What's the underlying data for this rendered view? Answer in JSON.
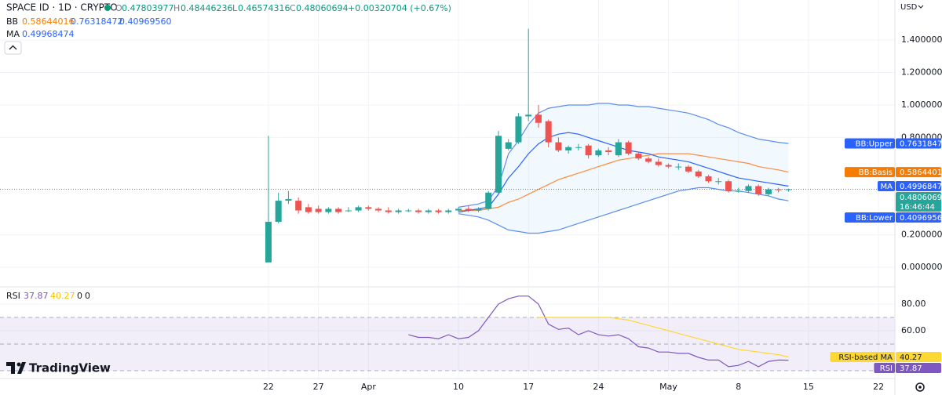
{
  "header": {
    "symbol": "SPACE ID · 1D · CRYPTO",
    "ohlc": [
      {
        "label": "O",
        "value": "0.47803977"
      },
      {
        "label": "H",
        "value": "0.48446236"
      },
      {
        "label": "L",
        "value": "0.46574316"
      },
      {
        "label": "C",
        "value": "0.48060694"
      }
    ],
    "change": "+0.00320704 (+0.67%)",
    "bb": {
      "label": "BB",
      "values": [
        "0.58644016",
        "0.76318472",
        "0.40969560"
      ]
    },
    "ma": {
      "label": "MA",
      "values": [
        "0.49968474"
      ]
    },
    "currency": "USD",
    "logo": "TradingView"
  },
  "chart_data": {
    "type": "candlestick",
    "up_color": "#26a69a",
    "down_color": "#ef5350",
    "xlim": [
      -26.84,
      62.64
    ],
    "xticks": [
      {
        "value": 0,
        "label": "22"
      },
      {
        "value": 5,
        "label": "27"
      },
      {
        "value": 10,
        "label": "Apr"
      },
      {
        "value": 19,
        "label": "10"
      },
      {
        "value": 26,
        "label": "17"
      },
      {
        "value": 33,
        "label": "24"
      },
      {
        "value": 40,
        "label": "May"
      },
      {
        "value": 47,
        "label": "8"
      },
      {
        "value": 54,
        "label": "15"
      },
      {
        "value": 61,
        "label": "22"
      }
    ],
    "ylim": [
      -0.116,
      1.647
    ],
    "yticks": [
      {
        "value": 0,
        "label": "0.00000000"
      },
      {
        "value": 0.2,
        "label": "0.20000000"
      },
      {
        "value": 0.8,
        "label": "0.80000000"
      },
      {
        "value": 1,
        "label": "1.00000000"
      },
      {
        "value": 1.2,
        "label": "1.20000000"
      },
      {
        "value": 1.4,
        "label": "1.40000000"
      }
    ],
    "grid": true,
    "countdown": "16:46:44",
    "open": [
      0.03,
      0.28,
      0.41,
      0.41,
      0.37,
      0.36,
      0.34,
      0.36,
      0.35,
      0.35,
      0.37,
      0.36,
      0.35,
      0.34,
      0.35,
      0.35,
      0.34,
      0.35,
      0.34,
      0.35,
      0.36,
      0.35,
      0.36,
      0.46,
      0.73,
      0.77,
      0.93,
      0.94,
      0.9,
      0.77,
      0.72,
      0.74,
      0.75,
      0.69,
      0.72,
      0.69,
      0.77,
      0.7,
      0.67,
      0.65,
      0.63,
      0.62,
      0.62,
      0.59,
      0.56,
      0.53,
      0.53,
      0.47,
      0.47,
      0.5,
      0.45,
      0.48,
      0.47803977
    ],
    "high": [
      0.81,
      0.46,
      0.47,
      0.43,
      0.39,
      0.38,
      0.37,
      0.37,
      0.37,
      0.38,
      0.38,
      0.37,
      0.37,
      0.36,
      0.36,
      0.36,
      0.36,
      0.36,
      0.36,
      0.37,
      0.38,
      0.37,
      0.47,
      0.84,
      0.79,
      0.95,
      1.47,
      1,
      0.91,
      0.8,
      0.75,
      0.76,
      0.76,
      0.73,
      0.74,
      0.79,
      0.78,
      0.71,
      0.68,
      0.67,
      0.64,
      0.64,
      0.63,
      0.6,
      0.57,
      0.55,
      0.54,
      0.49,
      0.51,
      0.51,
      0.49,
      0.49,
      0.48446236
    ],
    "low": [
      0.03,
      0.27,
      0.39,
      0.33,
      0.33,
      0.33,
      0.33,
      0.33,
      0.34,
      0.34,
      0.35,
      0.34,
      0.33,
      0.33,
      0.34,
      0.33,
      0.33,
      0.33,
      0.33,
      0.34,
      0.34,
      0.34,
      0.35,
      0.45,
      0.72,
      0.76,
      0.9,
      0.86,
      0.74,
      0.71,
      0.7,
      0.72,
      0.67,
      0.68,
      0.69,
      0.68,
      0.69,
      0.66,
      0.64,
      0.62,
      0.61,
      0.6,
      0.58,
      0.55,
      0.52,
      0.51,
      0.46,
      0.46,
      0.46,
      0.44,
      0.44,
      0.46,
      0.46574316
    ],
    "close": [
      0.28,
      0.41,
      0.42,
      0.35,
      0.34,
      0.34,
      0.36,
      0.34,
      0.35,
      0.37,
      0.36,
      0.35,
      0.34,
      0.35,
      0.35,
      0.34,
      0.35,
      0.34,
      0.35,
      0.36,
      0.35,
      0.36,
      0.46,
      0.81,
      0.77,
      0.93,
      0.94,
      0.89,
      0.77,
      0.72,
      0.74,
      0.74,
      0.69,
      0.72,
      0.71,
      0.77,
      0.7,
      0.67,
      0.65,
      0.63,
      0.62,
      0.62,
      0.59,
      0.56,
      0.53,
      0.53,
      0.47,
      0.47,
      0.5,
      0.45,
      0.48,
      0.478,
      0.48060694
    ],
    "overlays": [
      {
        "name": "BB:Upper",
        "color": "#5b8def",
        "label_color": "#2962ff",
        "values": [
          null,
          null,
          null,
          null,
          null,
          null,
          null,
          null,
          null,
          null,
          null,
          null,
          null,
          null,
          null,
          null,
          null,
          null,
          null,
          0.37,
          0.38,
          0.39,
          0.41,
          0.5,
          0.7,
          0.78,
          0.88,
          0.95,
          0.98,
          0.99,
          1,
          1,
          1,
          1.01,
          1.01,
          1,
          1,
          0.99,
          0.99,
          0.98,
          0.97,
          0.96,
          0.95,
          0.93,
          0.91,
          0.88,
          0.86,
          0.83,
          0.81,
          0.79,
          0.78,
          0.77,
          0.76318472
        ]
      },
      {
        "name": "BB:Basis",
        "color": "#ff8a3d",
        "label_color": "#f57c00",
        "values": [
          null,
          null,
          null,
          null,
          null,
          null,
          null,
          null,
          null,
          null,
          null,
          null,
          null,
          null,
          null,
          null,
          null,
          null,
          null,
          0.35,
          0.35,
          0.35,
          0.36,
          0.37,
          0.4,
          0.42,
          0.45,
          0.48,
          0.51,
          0.54,
          0.56,
          0.58,
          0.6,
          0.62,
          0.64,
          0.66,
          0.67,
          0.68,
          0.69,
          0.7,
          0.7,
          0.7,
          0.7,
          0.69,
          0.68,
          0.67,
          0.66,
          0.65,
          0.64,
          0.62,
          0.61,
          0.6,
          0.58644016
        ]
      },
      {
        "name": "BB:Lower",
        "color": "#5b8def",
        "label_color": "#2962ff",
        "values": [
          null,
          null,
          null,
          null,
          null,
          null,
          null,
          null,
          null,
          null,
          null,
          null,
          null,
          null,
          null,
          null,
          null,
          null,
          null,
          0.33,
          0.32,
          0.31,
          0.29,
          0.26,
          0.23,
          0.22,
          0.21,
          0.21,
          0.22,
          0.23,
          0.25,
          0.27,
          0.29,
          0.31,
          0.33,
          0.35,
          0.37,
          0.39,
          0.41,
          0.43,
          0.45,
          0.47,
          0.48,
          0.49,
          0.49,
          0.48,
          0.47,
          0.47,
          0.46,
          0.45,
          0.44,
          0.42,
          0.4096956
        ]
      },
      {
        "name": "MA",
        "color": "#2962ff",
        "label_color": "#2962ff",
        "values": [
          null,
          null,
          null,
          null,
          null,
          null,
          null,
          null,
          null,
          null,
          null,
          null,
          null,
          null,
          null,
          null,
          null,
          null,
          null,
          0.34,
          0.35,
          0.36,
          0.37,
          0.45,
          0.55,
          0.62,
          0.7,
          0.76,
          0.8,
          0.82,
          0.83,
          0.82,
          0.8,
          0.78,
          0.76,
          0.74,
          0.72,
          0.71,
          0.7,
          0.68,
          0.67,
          0.66,
          0.65,
          0.63,
          0.61,
          0.59,
          0.57,
          0.55,
          0.54,
          0.53,
          0.52,
          0.51,
          0.49968474
        ]
      }
    ],
    "band_fill": "#2196f3",
    "rsi": {
      "label": "RSI",
      "header_values": [
        "37.87",
        "40.27",
        "0",
        "0"
      ],
      "ylim": [
        24.7,
        92.35
      ],
      "yticks": [
        {
          "value": 80,
          "label": "80.00"
        },
        {
          "value": 60,
          "label": "60.00"
        }
      ],
      "bands": [
        70,
        50,
        30
      ],
      "band_color": "#7e57c2",
      "series": [
        {
          "name": "RSI",
          "color": "#7e57c2",
          "label_color": "#7e57c2",
          "values": [
            null,
            null,
            null,
            null,
            null,
            null,
            null,
            null,
            null,
            null,
            null,
            null,
            null,
            null,
            57,
            55,
            55,
            54,
            57,
            54,
            55,
            60,
            70,
            80,
            84,
            86,
            86,
            80,
            65,
            61,
            62,
            57,
            60,
            57,
            56,
            57,
            54,
            48,
            47,
            44,
            44,
            43,
            43,
            40,
            38,
            38,
            33,
            34,
            37,
            33,
            37,
            38,
            37.87
          ]
        },
        {
          "name": "RSI-based MA",
          "color": "#fdd835",
          "label_color": "#fdd835",
          "values": [
            null,
            null,
            null,
            null,
            null,
            null,
            null,
            null,
            null,
            null,
            null,
            null,
            null,
            null,
            null,
            null,
            null,
            null,
            null,
            null,
            null,
            null,
            null,
            null,
            null,
            null,
            null,
            70,
            70,
            70,
            70,
            70,
            70,
            70,
            70,
            69,
            68,
            66,
            64,
            62,
            60,
            58,
            56,
            54,
            52,
            50,
            48,
            46,
            45,
            44,
            43,
            42,
            40.27
          ]
        }
      ]
    }
  }
}
